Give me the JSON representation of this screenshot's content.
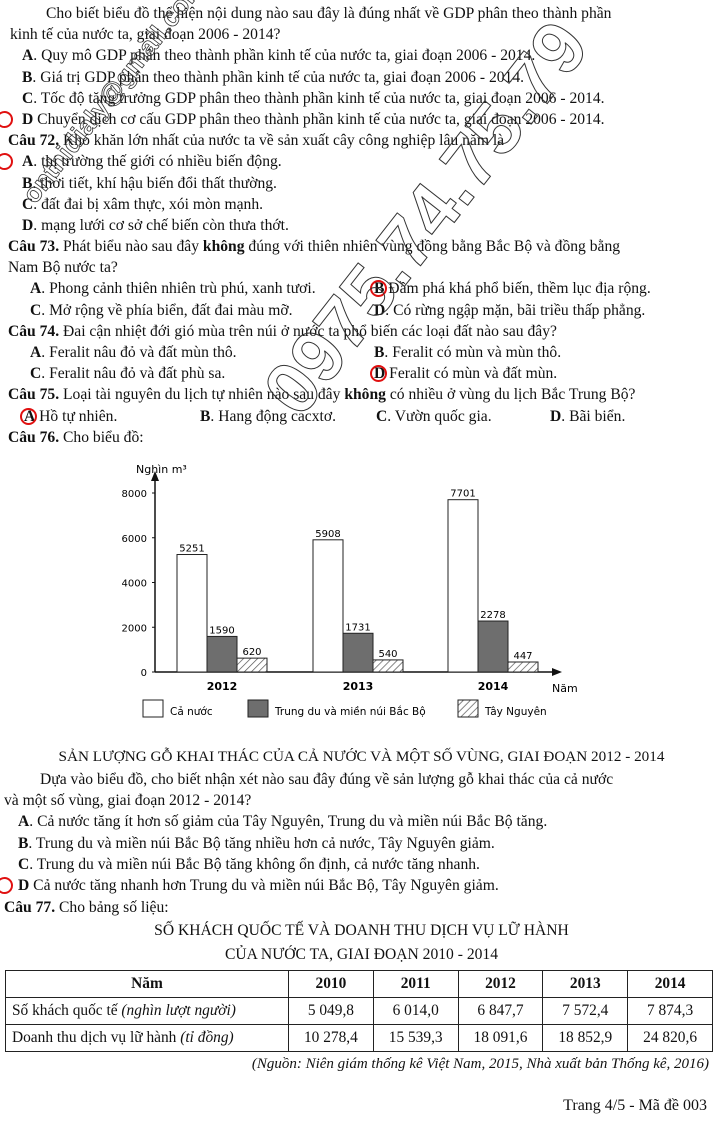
{
  "intro": {
    "line1": "Cho biết biểu đồ thể hiện nội dung nào sau đây là đúng nhất về GDP phân theo thành phần",
    "line2": "kinh tế của nước ta, giai đoạn 2006 - 2014?",
    "options": [
      {
        "letter": "A",
        "text": ". Quy mô GDP phân theo thành phần kinh tế của nước ta, giai đoạn 2006 - 2014.",
        "circled": false
      },
      {
        "letter": "B",
        "text": ". Giá trị GDP phân theo thành phần kinh tế của nước ta, giai đoạn 2006 - 2014.",
        "circled": false
      },
      {
        "letter": "C",
        "text": ". Tốc độ tăng trưởng GDP phân theo thành phần kinh tế của nước ta, giai đoạn 2006 - 2014.",
        "circled": false
      },
      {
        "letter": "D",
        "text": " Chuyển dịch cơ cấu GDP phân theo thành phần kinh tế của nước ta, giai đoạn 2006 - 2014.",
        "circled": true
      }
    ]
  },
  "q72": {
    "label": "Câu 72.",
    "text": " Khó khăn lớn nhất của nước ta về sản xuất cây công nghiệp lâu năm là",
    "options": [
      {
        "letter": "A",
        "text": ". thị trường thế giới có nhiều biến động.",
        "circled": true
      },
      {
        "letter": "B",
        "text": ". thời tiết, khí hậu biến đổi thất thường.",
        "circled": false
      },
      {
        "letter": "C",
        "text": ". đất đai bị xâm thực, xói mòn mạnh.",
        "circled": false
      },
      {
        "letter": "D",
        "text": ". mạng lưới cơ sở chế biến còn thưa thớt.",
        "circled": false
      }
    ]
  },
  "q73": {
    "label": "Câu 73.",
    "pre": " Phát biểu nào sau đây ",
    "bold": "không",
    "post": " đúng với thiên nhiên vùng đồng bằng Bắc Bộ và đồng bằng",
    "line2": "Nam Bộ nước ta?",
    "options": [
      {
        "letter": "A",
        "text": ". Phong cảnh thiên nhiên trù phú, xanh tươi.",
        "circled": false
      },
      {
        "letter": "B",
        "text": " Đầm phá khá phổ biến, thềm lục địa rộng.",
        "circled": true
      },
      {
        "letter": "C",
        "text": ". Mở rộng về phía biển, đất đai màu mỡ.",
        "circled": false
      },
      {
        "letter": "D",
        "text": ". Có rừng ngập mặn, bãi triều thấp phẳng.",
        "circled": false
      }
    ]
  },
  "q74": {
    "label": "Câu 74.",
    "text": " Đai cận nhiệt đới gió mùa trên núi ở nước ta phổ biến các loại đất nào sau đây?",
    "options": [
      {
        "letter": "A",
        "text": ". Feralit nâu đỏ và đất mùn thô.",
        "circled": false
      },
      {
        "letter": "B",
        "text": ". Feralit có mùn và mùn thô.",
        "circled": false
      },
      {
        "letter": "C",
        "text": ". Feralit nâu đỏ và đất phù sa.",
        "circled": false
      },
      {
        "letter": "D",
        "text": " Feralit có mùn và đất mùn.",
        "circled": true
      }
    ]
  },
  "q75": {
    "label": "Câu 75.",
    "pre": " Loại tài nguyên du lịch tự nhiên nào sau đây ",
    "bold": "không",
    "post": " có nhiều ở vùng du lịch Bắc Trung Bộ?",
    "options": [
      {
        "letter": "A",
        "text": " Hồ tự nhiên.",
        "circled": true
      },
      {
        "letter": "B",
        "text": ". Hang động cacxtơ.",
        "circled": false
      },
      {
        "letter": "C",
        "text": ". Vườn quốc gia.",
        "circled": false
      },
      {
        "letter": "D",
        "text": ". Bãi biển.",
        "circled": false
      }
    ]
  },
  "q76": {
    "label": "Câu 76.",
    "text": " Cho biểu đồ:",
    "chart_title": "SẢN LƯỢNG GỖ KHAI THÁC CỦA CẢ NƯỚC VÀ MỘT SỐ VÙNG,  GIAI ĐOẠN 2012 - 2014",
    "line1": "Dựa vào biểu đồ, cho biết nhận xét nào sau đây đúng về sản lượng gỗ khai thác của cả nước",
    "line2": "và một số vùng, giai đoạn 2012 - 2014?",
    "options": [
      {
        "letter": "A",
        "text": ". Cả nước tăng ít hơn số giảm của Tây Nguyên, Trung du và miền núi Bắc Bộ tăng.",
        "circled": false
      },
      {
        "letter": "B",
        "text": ". Trung du và miền núi Bắc Bộ tăng nhiều hơn cả nước, Tây Nguyên giảm.",
        "circled": false
      },
      {
        "letter": "C",
        "text": ". Trung du và miền núi Bắc Bộ tăng không ổn định, cả nước tăng nhanh.",
        "circled": false
      },
      {
        "letter": "D",
        "text": " Cả nước tăng nhanh hơn Trung du và miền núi Bắc Bộ, Tây Nguyên giảm.",
        "circled": true
      }
    ]
  },
  "chart_data": {
    "type": "bar",
    "ylabel": "Nghìn m³",
    "xlabel": "Năm",
    "categories": [
      "2012",
      "2013",
      "2014"
    ],
    "ylim": [
      0,
      8000
    ],
    "yticks": [
      "0",
      "2000",
      "4000",
      "6000",
      "8000"
    ],
    "grid": false,
    "legend_position": "bottom",
    "series": [
      {
        "name": "Cả nước",
        "values": [
          5251,
          5908,
          7701
        ],
        "fill": "white"
      },
      {
        "name": "Trung du và miền núi Bắc Bộ",
        "values": [
          1590,
          1731,
          2278
        ],
        "fill": "#6e6e6e"
      },
      {
        "name": "Tây Nguyên",
        "values": [
          620,
          540,
          447
        ],
        "fill": "hatched"
      }
    ]
  },
  "q77": {
    "label": "Câu 77.",
    "text": " Cho bảng số liệu:",
    "title1": "SỐ KHÁCH QUỐC TẾ VÀ DOANH THU DỊCH VỤ LỮ HÀNH",
    "title2": "CỦA NƯỚC TA, GIAI ĐOẠN 2010 - 2014",
    "headers": [
      "Năm",
      "2010",
      "2011",
      "2012",
      "2013",
      "2014"
    ],
    "rows": [
      {
        "label": "Số khách quốc tế ",
        "unit": "(nghìn lượt người)",
        "values": [
          "5 049,8",
          "6 014,0",
          "6 847,7",
          "7 572,4",
          "7 874,3"
        ]
      },
      {
        "label": "Doanh thu dịch vụ lữ hành ",
        "unit": "(tỉ đồng)",
        "values": [
          "10 278,4",
          "15 539,3",
          "18 091,6",
          "18 852,9",
          "24 820,6"
        ]
      }
    ],
    "source": "(Nguồn: Niên giám thống kê Việt Nam, 2015, Nhà xuất bản Thống kê, 2016)"
  },
  "footer": "Trang 4/5 - Mã đề 003",
  "watermark": {
    "email": "onthidialy@gmail.com",
    "phone": "0975.74.75.79"
  },
  "colors": {
    "answer_circle": "#e01010"
  }
}
